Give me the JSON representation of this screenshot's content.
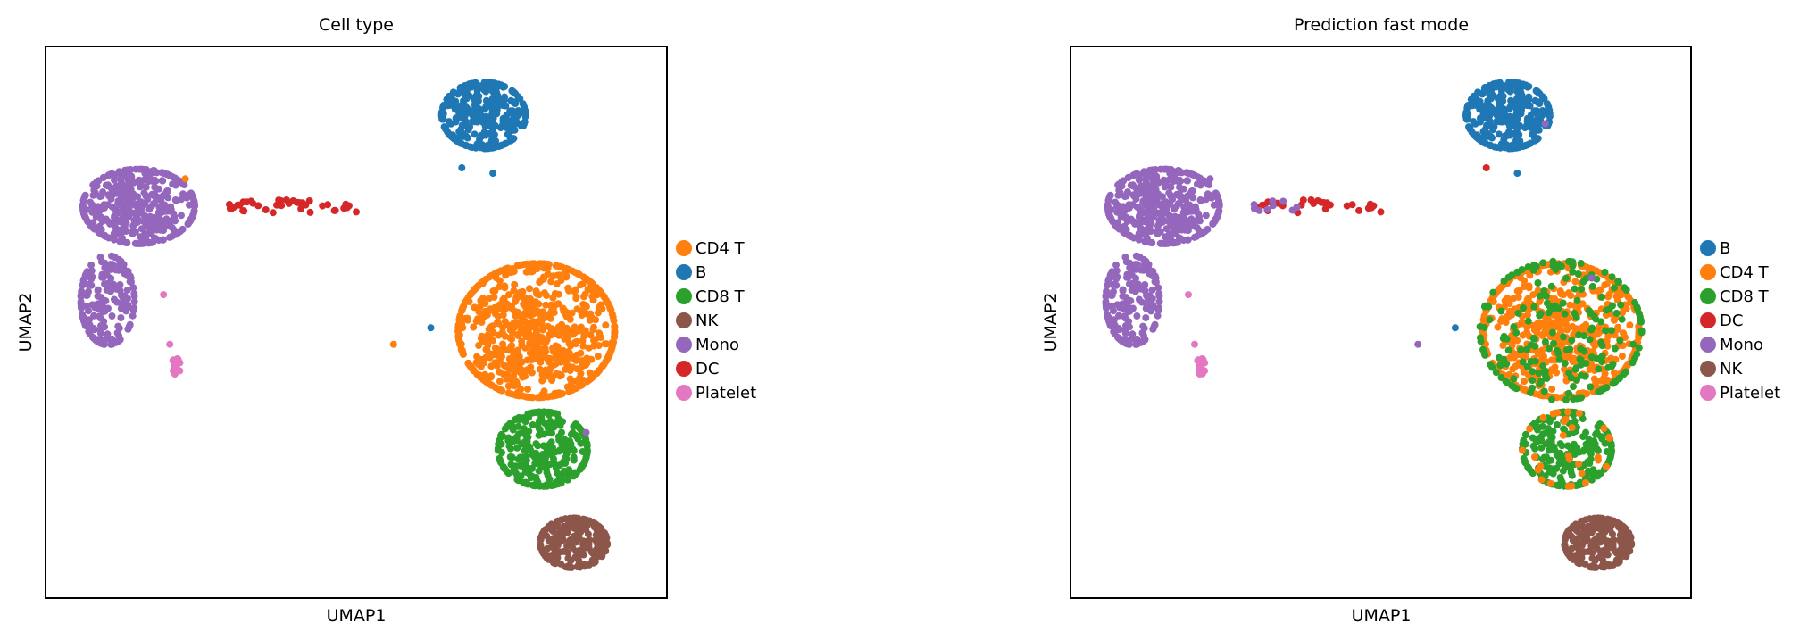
{
  "chart_data": [
    {
      "type": "scatter",
      "title": "Cell type",
      "xlabel": "UMAP1",
      "ylabel": "UMAP2",
      "ticks": false,
      "grid": false,
      "legend_placement": "right",
      "xlim": [
        0,
        100
      ],
      "ylim": [
        0,
        100
      ],
      "legend": [
        {
          "name": "CD4 T",
          "color": "#ff7f0e"
        },
        {
          "name": "B",
          "color": "#1f77b4"
        },
        {
          "name": "CD8 T",
          "color": "#2ca02c"
        },
        {
          "name": "NK",
          "color": "#8c564b"
        },
        {
          "name": "Mono",
          "color": "#9467bd"
        },
        {
          "name": "DC",
          "color": "#d62728"
        },
        {
          "name": "Platelet",
          "color": "#e377c2"
        }
      ],
      "clusters": [
        {
          "label": "B",
          "n": 320,
          "cx": 70.5,
          "cy": 87.5,
          "rx": 7.5,
          "ry": 6.7
        },
        {
          "label": "Mono",
          "n": 420,
          "cx": 15,
          "cy": 71,
          "rx": 10,
          "ry": 7.5
        },
        {
          "label": "Mono",
          "n": 180,
          "cx": 10,
          "cy": 54,
          "rx": 4.8,
          "ry": 9
        },
        {
          "label": "DC",
          "n": 38,
          "cx": 39,
          "cy": 71,
          "rx": 11,
          "ry": 1.3
        },
        {
          "label": "Platelet",
          "n": 14,
          "cx": 21,
          "cy": 42,
          "rx": 0.8,
          "ry": 1.6
        },
        {
          "label": "CD4 T",
          "n": 800,
          "cx": 79,
          "cy": 48.5,
          "rx": 14,
          "ry": 13.5
        },
        {
          "label": "CD8 T",
          "n": 300,
          "cx": 80,
          "cy": 27,
          "rx": 8,
          "ry": 7.5
        },
        {
          "label": "NK",
          "n": 200,
          "cx": 85,
          "cy": 10,
          "rx": 6,
          "ry": 5
        }
      ],
      "stray_points": [
        {
          "label": "B",
          "x": 67,
          "y": 78
        },
        {
          "label": "B",
          "x": 72,
          "y": 77
        },
        {
          "label": "B",
          "x": 62,
          "y": 49
        },
        {
          "label": "CD4 T",
          "x": 56,
          "y": 46
        },
        {
          "label": "CD4 T",
          "x": 22.5,
          "y": 76
        },
        {
          "label": "Platelet",
          "x": 19,
          "y": 55
        },
        {
          "label": "Platelet",
          "x": 20,
          "y": 46
        },
        {
          "label": "DC",
          "x": 50,
          "y": 70
        },
        {
          "label": "Mono",
          "x": 87,
          "y": 30
        }
      ]
    },
    {
      "type": "scatter",
      "title": "Prediction fast mode",
      "xlabel": "UMAP1",
      "ylabel": "UMAP2",
      "ticks": false,
      "grid": false,
      "legend_placement": "right",
      "xlim": [
        0,
        100
      ],
      "ylim": [
        0,
        100
      ],
      "legend": [
        {
          "name": "B",
          "color": "#1f77b4"
        },
        {
          "name": "CD4 T",
          "color": "#ff7f0e"
        },
        {
          "name": "CD8 T",
          "color": "#2ca02c"
        },
        {
          "name": "DC",
          "color": "#d62728"
        },
        {
          "name": "Mono",
          "color": "#9467bd"
        },
        {
          "name": "NK",
          "color": "#8c564b"
        },
        {
          "name": "Platelet",
          "color": "#e377c2"
        }
      ],
      "clusters": [
        {
          "label": "B",
          "n": 320,
          "cx": 70.5,
          "cy": 87.5,
          "rx": 7.5,
          "ry": 6.7
        },
        {
          "label": "Mono",
          "n": 420,
          "cx": 15,
          "cy": 71,
          "rx": 10,
          "ry": 7.5
        },
        {
          "label": "Mono",
          "n": 180,
          "cx": 10,
          "cy": 54,
          "rx": 4.8,
          "ry": 9
        },
        {
          "label": "DC",
          "n": 26,
          "cx": 39,
          "cy": 71,
          "rx": 11,
          "ry": 1.3
        },
        {
          "label": "Mono",
          "n": 10,
          "cx": 33,
          "cy": 71,
          "rx": 4,
          "ry": 1.2
        },
        {
          "label": "Platelet",
          "n": 14,
          "cx": 21,
          "cy": 42,
          "rx": 0.8,
          "ry": 1.6
        },
        {
          "label": "CD4 T",
          "n": 620,
          "cx": 79,
          "cy": 48.5,
          "rx": 14,
          "ry": 13.5
        },
        {
          "label": "CD8 T",
          "n": 220,
          "cx": 79,
          "cy": 48.5,
          "rx": 14.5,
          "ry": 14
        },
        {
          "label": "CD8 T",
          "n": 230,
          "cx": 80,
          "cy": 27,
          "rx": 8,
          "ry": 7.5
        },
        {
          "label": "CD4 T",
          "n": 30,
          "cx": 80,
          "cy": 27,
          "rx": 8,
          "ry": 7.5
        },
        {
          "label": "NK",
          "n": 200,
          "cx": 85,
          "cy": 10,
          "rx": 6,
          "ry": 5
        }
      ],
      "stray_points": [
        {
          "label": "DC",
          "x": 67,
          "y": 78
        },
        {
          "label": "B",
          "x": 72,
          "y": 77
        },
        {
          "label": "B",
          "x": 62,
          "y": 49
        },
        {
          "label": "Mono",
          "x": 56,
          "y": 46
        },
        {
          "label": "Mono",
          "x": 22.5,
          "y": 76
        },
        {
          "label": "Platelet",
          "x": 19,
          "y": 55
        },
        {
          "label": "Platelet",
          "x": 20,
          "y": 46
        },
        {
          "label": "DC",
          "x": 50,
          "y": 70
        },
        {
          "label": "Mono",
          "x": 76.5,
          "y": 86
        },
        {
          "label": "Mono",
          "x": 84,
          "y": 58
        }
      ]
    }
  ]
}
